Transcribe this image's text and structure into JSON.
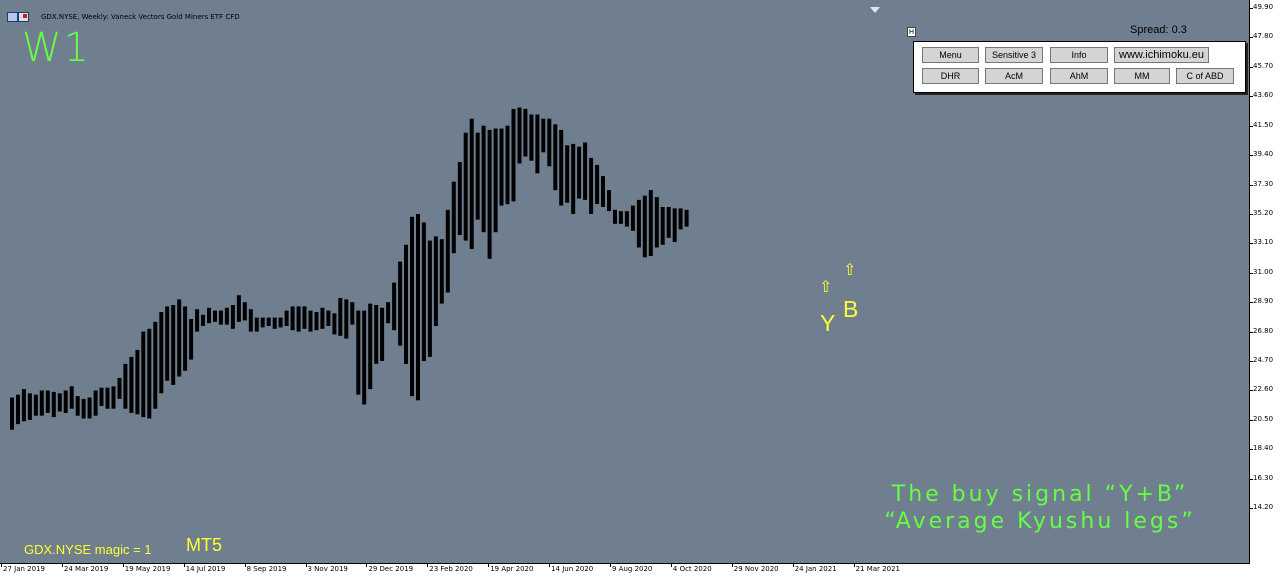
{
  "window": {
    "title": "GDX.NYSE, Weekly:  Vaneck Vectors Gold Miners ETF CFD",
    "timeframe_label": "W1",
    "spread_label": "Spread: 0.3"
  },
  "panel": {
    "toggle_label": "H",
    "row1": [
      "Menu",
      "Sensitive 3",
      "Info",
      "www.ichimoku.eu"
    ],
    "row2": [
      "DHR",
      "AcM",
      "AhM",
      "MM",
      "C of ABD"
    ]
  },
  "annotations": {
    "signal_line1": "The buy signal “Y+B”",
    "signal_line2": "“Average Kyushu legs”",
    "y_letter": "Y",
    "b_letter": "B",
    "footer_symbol": "GDX.NYSE  magic = 1",
    "footer_platform": "MT5",
    "arrow_glyph": "⇧"
  },
  "colors": {
    "chart_bg": "#6f7f8f",
    "bars": "#000000",
    "label_green": "#66ff44",
    "label_yellow": "#ffff33"
  },
  "chart_data": {
    "type": "range-bars",
    "ylim": [
      12.5,
      49.9
    ],
    "y_ticks": [
      "49.90",
      "47.80",
      "45.70",
      "43.60",
      "41.50",
      "39.40",
      "37.30",
      "35.20",
      "33.10",
      "31.00",
      "28.90",
      "26.80",
      "24.70",
      "22.60",
      "20.50",
      "18.40",
      "16.30",
      "14.20"
    ],
    "x_ticks": [
      "27 Jan 2019",
      "24 Mar 2019",
      "19 May 2019",
      "14 Jul 2019",
      "8 Sep 2019",
      "3 Nov 2019",
      "29 Dec 2019",
      "23 Feb 2020",
      "19 Apr 2020",
      "14 Jun 2020",
      "9 Aug 2020",
      "4 Oct 2020",
      "29 Nov 2020",
      "24 Jan 2021",
      "21 Mar 2021"
    ],
    "bars": [
      [
        19.8,
        22.1
      ],
      [
        20.2,
        22.3
      ],
      [
        20.4,
        22.7
      ],
      [
        20.5,
        22.4
      ],
      [
        20.8,
        22.3
      ],
      [
        20.8,
        22.6
      ],
      [
        21.0,
        22.6
      ],
      [
        20.7,
        22.5
      ],
      [
        21.1,
        22.4
      ],
      [
        21.0,
        22.6
      ],
      [
        21.3,
        22.9
      ],
      [
        20.8,
        22.2
      ],
      [
        20.6,
        22.0
      ],
      [
        20.6,
        22.1
      ],
      [
        20.8,
        22.6
      ],
      [
        21.5,
        22.8
      ],
      [
        21.3,
        22.8
      ],
      [
        21.3,
        22.9
      ],
      [
        22.0,
        23.5
      ],
      [
        21.3,
        24.5
      ],
      [
        21.0,
        25.0
      ],
      [
        20.9,
        25.5
      ],
      [
        20.7,
        26.8
      ],
      [
        20.6,
        27.0
      ],
      [
        21.3,
        27.5
      ],
      [
        22.4,
        28.2
      ],
      [
        23.3,
        28.6
      ],
      [
        23.0,
        28.7
      ],
      [
        23.6,
        29.1
      ],
      [
        24.0,
        28.6
      ],
      [
        24.8,
        27.7
      ],
      [
        26.8,
        28.4
      ],
      [
        27.2,
        28.0
      ],
      [
        27.4,
        28.5
      ],
      [
        27.5,
        28.3
      ],
      [
        27.3,
        28.3
      ],
      [
        27.3,
        28.5
      ],
      [
        27.0,
        28.7
      ],
      [
        27.5,
        29.4
      ],
      [
        27.6,
        28.9
      ],
      [
        26.8,
        28.4
      ],
      [
        26.8,
        27.8
      ],
      [
        27.1,
        27.8
      ],
      [
        27.2,
        27.8
      ],
      [
        27.0,
        27.8
      ],
      [
        27.1,
        27.8
      ],
      [
        27.2,
        28.3
      ],
      [
        26.9,
        28.6
      ],
      [
        26.8,
        28.6
      ],
      [
        27.0,
        28.6
      ],
      [
        26.8,
        28.3
      ],
      [
        26.9,
        28.2
      ],
      [
        27.0,
        28.5
      ],
      [
        27.2,
        28.3
      ],
      [
        26.6,
        28.1
      ],
      [
        26.5,
        29.2
      ],
      [
        26.3,
        29.1
      ],
      [
        27.3,
        28.9
      ],
      [
        22.3,
        28.3
      ],
      [
        21.6,
        28.3
      ],
      [
        22.7,
        28.8
      ],
      [
        24.5,
        28.7
      ],
      [
        24.7,
        28.5
      ],
      [
        27.4,
        28.9
      ],
      [
        26.9,
        30.3
      ],
      [
        25.8,
        31.8
      ],
      [
        24.5,
        33.0
      ],
      [
        22.2,
        35.0
      ],
      [
        21.9,
        35.2
      ],
      [
        24.7,
        34.6
      ],
      [
        25.0,
        33.3
      ],
      [
        27.2,
        33.6
      ],
      [
        28.8,
        33.4
      ],
      [
        29.6,
        35.5
      ],
      [
        32.4,
        37.5
      ],
      [
        33.7,
        38.9
      ],
      [
        33.3,
        41.0
      ],
      [
        32.7,
        42.0
      ],
      [
        34.8,
        41.0
      ],
      [
        33.9,
        41.5
      ],
      [
        32.0,
        41.2
      ],
      [
        33.9,
        41.3
      ],
      [
        35.8,
        41.3
      ],
      [
        35.9,
        41.5
      ],
      [
        36.1,
        42.7
      ],
      [
        38.8,
        42.8
      ],
      [
        39.3,
        42.7
      ],
      [
        39.0,
        42.3
      ],
      [
        38.1,
        42.3
      ],
      [
        39.6,
        42.0
      ],
      [
        38.6,
        42.0
      ],
      [
        36.9,
        41.6
      ],
      [
        35.8,
        41.2
      ],
      [
        36.0,
        40.1
      ],
      [
        35.2,
        40.2
      ],
      [
        36.3,
        40.0
      ],
      [
        36.2,
        40.3
      ],
      [
        35.2,
        39.2
      ],
      [
        35.9,
        38.7
      ],
      [
        35.7,
        37.9
      ],
      [
        35.4,
        36.9
      ],
      [
        34.5,
        35.5
      ],
      [
        34.5,
        35.4
      ],
      [
        34.3,
        35.4
      ],
      [
        34.0,
        35.8
      ],
      [
        32.8,
        36.2
      ],
      [
        32.1,
        36.5
      ],
      [
        32.2,
        36.9
      ],
      [
        32.8,
        36.4
      ],
      [
        33.0,
        35.7
      ],
      [
        33.5,
        35.7
      ],
      [
        33.2,
        35.6
      ],
      [
        34.1,
        35.6
      ],
      [
        34.3,
        35.5
      ]
    ]
  }
}
